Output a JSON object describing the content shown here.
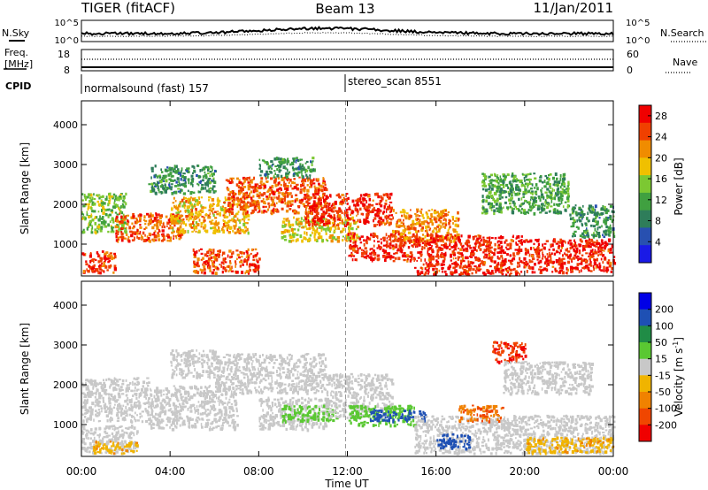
{
  "header": {
    "radar": "TIGER (fitACF)",
    "beam": "Beam 13",
    "date": "11/Jan/2011"
  },
  "params": {
    "nsky_label": "N.Sky",
    "nsearch_label": "N.Search",
    "freq_label_1": "Freq.",
    "freq_label_2": "[MHz]",
    "nave_label": "Nave",
    "cpid_label": "CPID",
    "nsky_ticks": [
      "10^5",
      "10^0"
    ],
    "nsearch_ticks": [
      "10^5",
      "10^0"
    ],
    "freq_ticks": [
      "18",
      "8"
    ],
    "nave_ticks": [
      "60",
      "0"
    ]
  },
  "cpid": {
    "segments": [
      {
        "label": "normalsound (fast) 157",
        "start": "00:00"
      },
      {
        "label": "stereo_scan 8551",
        "start": "12:00"
      }
    ]
  },
  "colors": {
    "power": [
      "#1a1ae6",
      "#2850b0",
      "#2e7d5a",
      "#40a040",
      "#7cc832",
      "#f0c000",
      "#f08c00",
      "#f04000",
      "#f00000"
    ],
    "velocity": [
      "#0000e6",
      "#1e50b4",
      "#208c46",
      "#5ac832",
      "#c8c8c8",
      "#f0b400",
      "#f08200",
      "#f04600",
      "#f00000"
    ]
  },
  "chart_data": [
    {
      "type": "heatmap",
      "title": "Power",
      "xlabel": "Time UT",
      "ylabel": "Slant Range [km]",
      "x_ticks": [
        "00:00",
        "04:00",
        "08:00",
        "12:00",
        "16:00",
        "20:00",
        "00:00"
      ],
      "xlim": [
        0,
        24
      ],
      "y_ticks": [
        "1000",
        "2000",
        "3000",
        "4000"
      ],
      "ylim": [
        200,
        4600
      ],
      "colorbar": {
        "label": "Power [dB]",
        "ticks": [
          "4",
          "8",
          "12",
          "16",
          "20",
          "24",
          "28"
        ],
        "range": [
          0,
          30
        ]
      },
      "bands": [
        {
          "t0": 0,
          "t1": 1.5,
          "r0": 300,
          "r1": 850,
          "value": 26
        },
        {
          "t0": 0,
          "t1": 2,
          "r0": 1300,
          "r1": 2300,
          "value": 14
        },
        {
          "t0": 1.5,
          "t1": 4.5,
          "r0": 1100,
          "r1": 1800,
          "value": 24
        },
        {
          "t0": 3,
          "t1": 6,
          "r0": 2300,
          "r1": 3000,
          "value": 10
        },
        {
          "t0": 4,
          "t1": 7.5,
          "r0": 1300,
          "r1": 2200,
          "value": 20
        },
        {
          "t0": 5,
          "t1": 8,
          "r0": 300,
          "r1": 900,
          "value": 25
        },
        {
          "t0": 6.5,
          "t1": 11,
          "r0": 1800,
          "r1": 2700,
          "value": 24
        },
        {
          "t0": 8,
          "t1": 10.5,
          "r0": 2700,
          "r1": 3200,
          "value": 10
        },
        {
          "t0": 9,
          "t1": 12.5,
          "r0": 1100,
          "r1": 1700,
          "value": 18
        },
        {
          "t0": 10,
          "t1": 14,
          "r0": 1500,
          "r1": 2300,
          "value": 27
        },
        {
          "t0": 12,
          "t1": 15,
          "r0": 600,
          "r1": 1300,
          "value": 27
        },
        {
          "t0": 14,
          "t1": 17,
          "r0": 1100,
          "r1": 1900,
          "value": 22
        },
        {
          "t0": 15,
          "t1": 20,
          "r0": 250,
          "r1": 1250,
          "value": 27
        },
        {
          "t0": 18,
          "t1": 22,
          "r0": 1800,
          "r1": 2800,
          "value": 12
        },
        {
          "t0": 20,
          "t1": 24,
          "r0": 300,
          "r1": 1150,
          "value": 27
        },
        {
          "t0": 22,
          "t1": 24,
          "r0": 1200,
          "r1": 2000,
          "value": 10
        }
      ]
    },
    {
      "type": "heatmap",
      "title": "Velocity",
      "xlabel": "Time UT",
      "ylabel": "Slant Range [km]",
      "x_ticks": [
        "00:00",
        "04:00",
        "08:00",
        "12:00",
        "16:00",
        "20:00",
        "00:00"
      ],
      "xlim": [
        0,
        24
      ],
      "y_ticks": [
        "1000",
        "2000",
        "3000",
        "4000"
      ],
      "ylim": [
        200,
        4600
      ],
      "colorbar": {
        "label": "Velocity [m s^-1]",
        "ticks": [
          "200",
          "100",
          "50",
          "15",
          "-15",
          "-50",
          "-100",
          "-200"
        ],
        "range": [
          -250,
          250
        ]
      },
      "bands": [
        {
          "t0": 0,
          "t1": 2.5,
          "r0": 300,
          "r1": 1000,
          "value": 0
        },
        {
          "t0": 0,
          "t1": 3,
          "r0": 1100,
          "r1": 2200,
          "value": 0
        },
        {
          "t0": 0.5,
          "t1": 2.5,
          "r0": 300,
          "r1": 600,
          "value": -40
        },
        {
          "t0": 3,
          "t1": 7,
          "r0": 900,
          "r1": 2000,
          "value": 0
        },
        {
          "t0": 4,
          "t1": 6,
          "r0": 2200,
          "r1": 2900,
          "value": 0
        },
        {
          "t0": 6,
          "t1": 11,
          "r0": 1800,
          "r1": 2800,
          "value": 0
        },
        {
          "t0": 8,
          "t1": 11,
          "r0": 900,
          "r1": 1700,
          "value": 0
        },
        {
          "t0": 9,
          "t1": 11.5,
          "r0": 1100,
          "r1": 1500,
          "value": 35
        },
        {
          "t0": 11,
          "t1": 14,
          "r0": 1200,
          "r1": 2300,
          "value": 0
        },
        {
          "t0": 12,
          "t1": 15,
          "r0": 1000,
          "r1": 1500,
          "value": 35
        },
        {
          "t0": 13,
          "t1": 15.5,
          "r0": 1100,
          "r1": 1400,
          "value": 120
        },
        {
          "t0": 15,
          "t1": 24,
          "r0": 300,
          "r1": 1250,
          "value": 0
        },
        {
          "t0": 16,
          "t1": 17.5,
          "r0": 400,
          "r1": 800,
          "value": 130
        },
        {
          "t0": 17,
          "t1": 19,
          "r0": 1100,
          "r1": 1500,
          "value": -100
        },
        {
          "t0": 18.5,
          "t1": 20,
          "r0": 2600,
          "r1": 3100,
          "value": -200
        },
        {
          "t0": 19,
          "t1": 23,
          "r0": 1800,
          "r1": 2600,
          "value": 0
        },
        {
          "t0": 20,
          "t1": 24,
          "r0": 300,
          "r1": 700,
          "value": -40
        }
      ]
    }
  ]
}
